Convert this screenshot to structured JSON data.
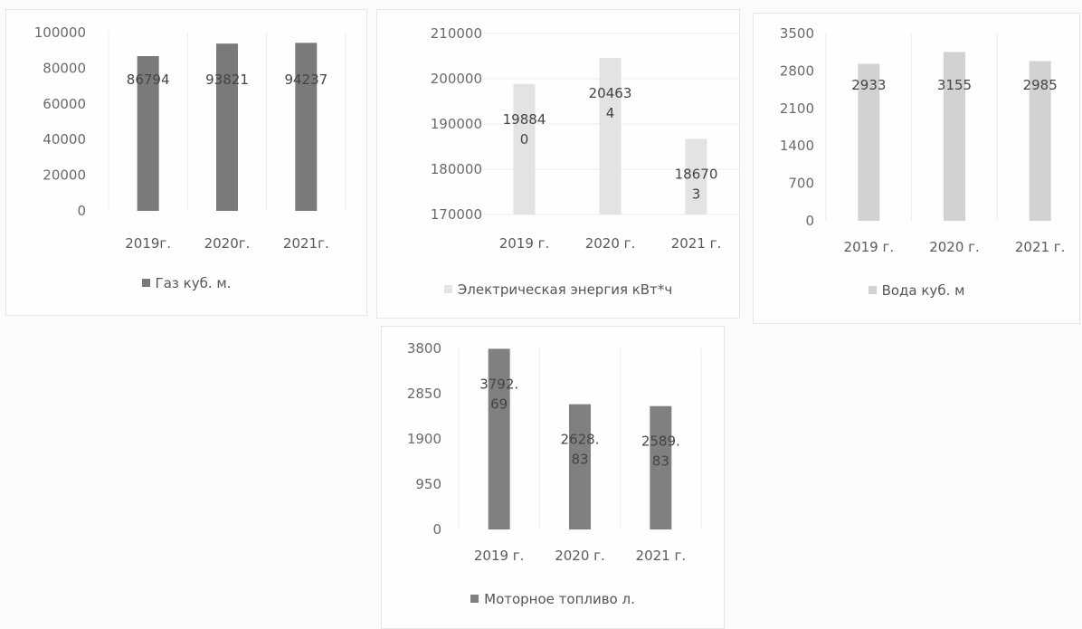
{
  "chart_data": [
    {
      "type": "bar",
      "categories": [
        "2019г.",
        "2020г.",
        "2021г."
      ],
      "series": [
        {
          "name": "Газ куб. м.",
          "values": [
            86794,
            93821,
            94237
          ]
        }
      ],
      "data_labels": [
        [
          "86794"
        ],
        [
          "93821"
        ],
        [
          "94237"
        ]
      ],
      "ylim": [
        0,
        100000
      ],
      "yticks": [
        "100000",
        "80000",
        "60000",
        "40000",
        "20000",
        "0"
      ],
      "ytick_values": [
        100000,
        80000,
        60000,
        40000,
        20000,
        0
      ],
      "legend": "bottom",
      "grid": "vertical",
      "color": "#7a7a7a"
    },
    {
      "type": "bar",
      "categories": [
        "2019 г.",
        "2020 г.",
        "2021 г."
      ],
      "series": [
        {
          "name": "Электрическая энергия кВт*ч",
          "values": [
            198840,
            204634,
            186703
          ]
        }
      ],
      "data_labels": [
        [
          "19884",
          "0"
        ],
        [
          "20463",
          "4"
        ],
        [
          "18670",
          "3"
        ]
      ],
      "ylim": [
        170000,
        210000
      ],
      "yticks": [
        "210000",
        "200000",
        "190000",
        "180000",
        "170000"
      ],
      "ytick_values": [
        210000,
        200000,
        190000,
        180000,
        170000
      ],
      "legend": "bottom",
      "grid": "horizontal",
      "color": "#e3e3e3"
    },
    {
      "type": "bar",
      "categories": [
        "2019 г.",
        "2020 г.",
        "2021 г."
      ],
      "series": [
        {
          "name": "Вода куб. м",
          "values": [
            2933,
            3155,
            2985
          ]
        }
      ],
      "data_labels": [
        [
          "2933"
        ],
        [
          "3155"
        ],
        [
          "2985"
        ]
      ],
      "ylim": [
        0,
        3500
      ],
      "yticks": [
        "3500",
        "2800",
        "2100",
        "1400",
        "700",
        "0"
      ],
      "ytick_values": [
        3500,
        2800,
        2100,
        1400,
        700,
        0
      ],
      "legend": "bottom",
      "grid": "vertical",
      "color": "#d2d2d2"
    },
    {
      "type": "bar",
      "categories": [
        "2019 г.",
        "2020 г.",
        "2021 г."
      ],
      "series": [
        {
          "name": "Моторное топливо л.",
          "values": [
            3792.69,
            2628.83,
            2589.83
          ]
        }
      ],
      "data_labels": [
        [
          "3792.",
          "69"
        ],
        [
          "2628.",
          "83"
        ],
        [
          "2589.",
          "83"
        ]
      ],
      "ylim": [
        0,
        3800
      ],
      "yticks": [
        "3800",
        "2850",
        "1900",
        "950",
        "0"
      ],
      "ytick_values": [
        3800,
        2850,
        1900,
        950,
        0
      ],
      "legend": "bottom",
      "grid": "vertical",
      "color": "#808080"
    }
  ]
}
